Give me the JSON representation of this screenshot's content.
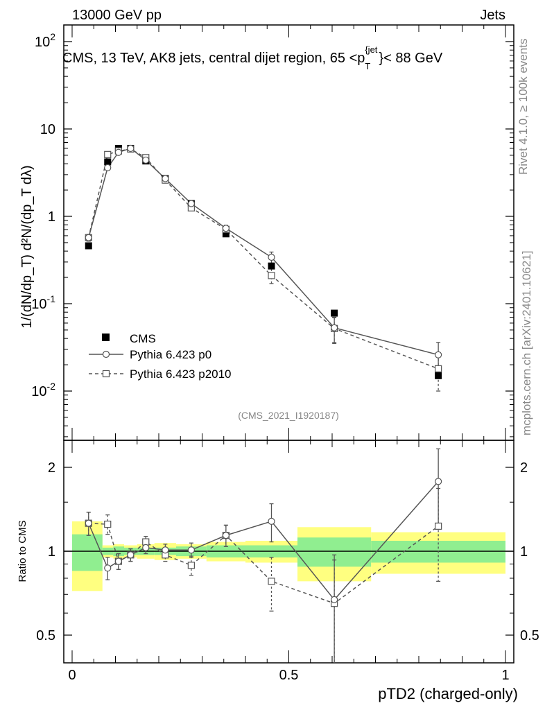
{
  "header": {
    "left": "13000 GeV pp",
    "right": "Jets"
  },
  "side": {
    "rivet": "Rivet 4.1.0, ≥ 100k events",
    "mcplots": "mcplots.cern.ch [arXiv:2401.10621]"
  },
  "main": {
    "title": "CMS, 13 TeV, AK8 jets, central dijet region, 65 < p_T^{jet} < 88 GeV",
    "ylabel": "1/(dN/dp_T) d²N/(dp_T dλ)",
    "analysis_id": "(CMS_2021_I1920187)",
    "ytick_labels": [
      "10^-2",
      "10^-1",
      "1",
      "10",
      "10^2"
    ]
  },
  "legend": {
    "data": "CMS",
    "mc1": "Pythia 6.423 p0",
    "mc2": "Pythia 6.423 p2010"
  },
  "ratio": {
    "ylabel": "Ratio to CMS",
    "ytick_labels": [
      "0.5",
      "1",
      "2"
    ],
    "xtick_labels": [
      "0",
      "0.5",
      "1"
    ]
  },
  "xlabel": "pTD2 (charged-only)",
  "colors": {
    "band_inner": "#90ee90",
    "band_outer": "#ffff80",
    "mc": "#555555"
  },
  "chart_data": {
    "type": "scatter",
    "title": "CMS, 13 TeV, AK8 jets, central dijet region, 65 < p_T^{jet} < 88 GeV",
    "xlabel": "pTD2 (charged-only)",
    "ylabel": "1/(dN/dp_T) d²N/(dp_T dλ)",
    "xlim": [
      0,
      1
    ],
    "ylim": [
      0.003,
      150
    ],
    "yscale": "log",
    "x": [
      0.038,
      0.082,
      0.107,
      0.135,
      0.17,
      0.215,
      0.275,
      0.355,
      0.46,
      0.605,
      0.845
    ],
    "bin_edges": [
      0,
      0.07,
      0.095,
      0.12,
      0.15,
      0.19,
      0.24,
      0.31,
      0.4,
      0.52,
      0.69,
      1.0
    ],
    "series": [
      {
        "name": "CMS",
        "style": "filled-square",
        "values": [
          0.46,
          4.2,
          6.0,
          6.0,
          4.3,
          2.7,
          1.4,
          0.63,
          0.27,
          0.078,
          0.015
        ],
        "band_inner_rel": [
          0.15,
          0.03,
          0.04,
          0.03,
          0.03,
          0.03,
          0.04,
          0.05,
          0.05,
          0.12,
          0.09
        ],
        "band_outer_rel": [
          0.28,
          0.05,
          0.06,
          0.05,
          0.06,
          0.07,
          0.06,
          0.08,
          0.09,
          0.22,
          0.17
        ]
      },
      {
        "name": "Pythia 6.423 p0",
        "style": "open-circle-solid",
        "values": [
          0.57,
          3.6,
          5.4,
          6.0,
          4.4,
          2.7,
          1.4,
          0.73,
          0.34,
          0.053,
          0.026
        ],
        "errors": [
          0.05,
          0.2,
          0.25,
          0.25,
          0.2,
          0.12,
          0.08,
          0.06,
          0.05,
          0.017,
          0.01
        ]
      },
      {
        "name": "Pythia 6.423 p2010",
        "style": "open-square-dashed",
        "values": [
          0.57,
          5.1,
          5.6,
          5.9,
          4.7,
          2.6,
          1.25,
          0.71,
          0.21,
          0.052,
          0.018
        ],
        "errors": [
          0.05,
          0.25,
          0.25,
          0.25,
          0.2,
          0.12,
          0.07,
          0.06,
          0.04,
          0.017,
          0.008
        ]
      }
    ],
    "ratio": {
      "ylabel": "Ratio to CMS",
      "ylim": [
        0.4,
        2.5
      ],
      "p0": [
        1.26,
        0.87,
        0.92,
        0.97,
        1.03,
        1.01,
        1.01,
        1.14,
        1.28,
        0.67,
        1.78
      ],
      "p0_err": [
        0.12,
        0.08,
        0.06,
        0.05,
        0.05,
        0.05,
        0.06,
        0.1,
        0.2,
        0.3,
        0.55
      ],
      "p2010": [
        1.26,
        1.25,
        0.92,
        0.97,
        1.08,
        0.97,
        0.89,
        1.14,
        0.78,
        0.65,
        1.23
      ],
      "p2010_err": [
        0.12,
        0.1,
        0.06,
        0.05,
        0.05,
        0.05,
        0.07,
        0.1,
        0.17,
        0.28,
        0.45
      ]
    }
  }
}
